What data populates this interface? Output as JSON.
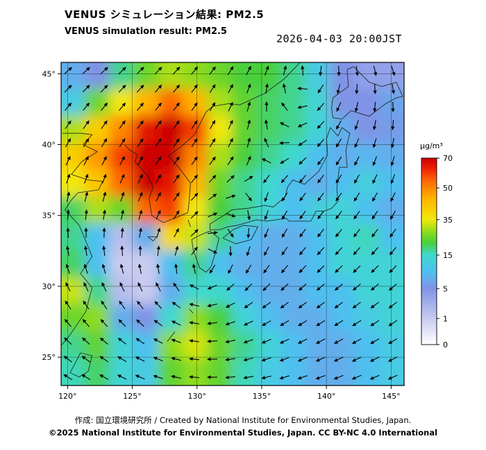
{
  "header": {
    "title_jp": "VENUS シミュレーション結果: PM2.5",
    "title_en": "VENUS simulation result: PM2.5",
    "timestamp": "2026-04-03 20:00JST"
  },
  "footer": {
    "credit": "作成: 国立環境研究所 / Created by National Institute for Environmental Studies, Japan.",
    "copyright": "©2025 National Institute for Environmental Studies, Japan. CC BY-NC 4.0 International"
  },
  "chart_data": {
    "type": "heatmap",
    "title": "VENUS simulation result: PM2.5",
    "variable": "PM2.5 surface concentration with wind vectors",
    "unit": "μg/m³",
    "projection_extent": {
      "lon_min": 119.5,
      "lon_max": 146.0,
      "lat_min": 23.0,
      "lat_max": 45.8
    },
    "lon_ticks": [
      {
        "v": 120,
        "label": "120°"
      },
      {
        "v": 125,
        "label": "125°"
      },
      {
        "v": 130,
        "label": "130°"
      },
      {
        "v": 135,
        "label": "135°"
      },
      {
        "v": 140,
        "label": "140°"
      },
      {
        "v": 145,
        "label": "145°"
      }
    ],
    "lat_ticks": [
      {
        "v": 45,
        "label": "45°"
      },
      {
        "v": 40,
        "label": "40°"
      },
      {
        "v": 35,
        "label": "35°"
      },
      {
        "v": 30,
        "label": "30°"
      },
      {
        "v": 25,
        "label": "25°"
      }
    ],
    "colorbar": {
      "unit_label": "μg/m³",
      "ticks": [
        {
          "v": 70,
          "label": "70"
        },
        {
          "v": 50,
          "label": "50"
        },
        {
          "v": 35,
          "label": "35"
        },
        {
          "v": 15,
          "label": "15"
        },
        {
          "v": 5,
          "label": "5"
        },
        {
          "v": 1,
          "label": "1"
        },
        {
          "v": 0,
          "label": "0"
        }
      ],
      "scale_breaks": [
        [
          0,
          0
        ],
        [
          1,
          0.14
        ],
        [
          5,
          0.3
        ],
        [
          15,
          0.48
        ],
        [
          35,
          0.67
        ],
        [
          50,
          0.84
        ],
        [
          70,
          1.0
        ]
      ],
      "stops": [
        {
          "v": 0,
          "c": "#ffffff"
        },
        {
          "v": 1,
          "c": "#c9cbf0"
        },
        {
          "v": 5,
          "c": "#8093e6"
        },
        {
          "v": 10,
          "c": "#4ec0f0"
        },
        {
          "v": 15,
          "c": "#3fd8cf"
        },
        {
          "v": 22,
          "c": "#49cf3a"
        },
        {
          "v": 28,
          "c": "#8edc1c"
        },
        {
          "v": 35,
          "c": "#f2e80c"
        },
        {
          "v": 45,
          "c": "#ffb400"
        },
        {
          "v": 55,
          "c": "#ff6600"
        },
        {
          "v": 63,
          "c": "#ee2200"
        },
        {
          "v": 70,
          "c": "#cc0000"
        }
      ]
    },
    "grid": {
      "lons": [
        120.4,
        122.3,
        124.2,
        126.1,
        128.0,
        129.9,
        131.8,
        133.7,
        135.6,
        137.5,
        139.4,
        141.3,
        143.2,
        145.1
      ],
      "lats": [
        44.9,
        43.0,
        41.1,
        39.2,
        37.3,
        35.4,
        33.5,
        31.6,
        29.7,
        27.8,
        25.9,
        24.0
      ],
      "values": [
        [
          8,
          5,
          18,
          25,
          30,
          28,
          25,
          22,
          22,
          18,
          12,
          5,
          4,
          4
        ],
        [
          12,
          25,
          35,
          45,
          55,
          45,
          30,
          24,
          20,
          18,
          14,
          5,
          5,
          7
        ],
        [
          30,
          40,
          50,
          65,
          70,
          60,
          35,
          24,
          20,
          18,
          14,
          8,
          5,
          6
        ],
        [
          40,
          48,
          60,
          70,
          70,
          50,
          30,
          22,
          18,
          15,
          10,
          8,
          9,
          8
        ],
        [
          35,
          42,
          55,
          70,
          65,
          45,
          25,
          18,
          15,
          10,
          8,
          10,
          13,
          10
        ],
        [
          20,
          30,
          25,
          55,
          60,
          35,
          22,
          18,
          14,
          10,
          13,
          14,
          10,
          8
        ],
        [
          18,
          10,
          2,
          8,
          38,
          32,
          18,
          10,
          8,
          8,
          10,
          14,
          16,
          10
        ],
        [
          20,
          10,
          1,
          1,
          10,
          18,
          10,
          8,
          8,
          8,
          10,
          14,
          14,
          14
        ],
        [
          32,
          18,
          2,
          1,
          8,
          15,
          15,
          10,
          8,
          8,
          10,
          10,
          14,
          14
        ],
        [
          25,
          28,
          8,
          5,
          15,
          28,
          22,
          14,
          10,
          8,
          8,
          10,
          12,
          14
        ],
        [
          18,
          24,
          14,
          10,
          28,
          33,
          25,
          18,
          14,
          10,
          8,
          8,
          10,
          12
        ],
        [
          16,
          20,
          14,
          12,
          24,
          28,
          24,
          16,
          12,
          10,
          8,
          8,
          10,
          12
        ]
      ]
    },
    "wind": {
      "background": {
        "u_north": 5,
        "u_south": -4
      },
      "vortices": [
        {
          "lon": 130,
          "lat": 30,
          "spin": "cw",
          "strength": 55,
          "core": 15
        },
        {
          "lon": 139,
          "lat": 48,
          "spin": "cw",
          "strength": 90,
          "core": 25
        }
      ]
    },
    "coastlines": [
      [
        [
          119.6,
          40.8
        ],
        [
          121.0,
          40.8
        ],
        [
          121.9,
          40.7
        ],
        [
          121.2,
          40.0
        ],
        [
          122.3,
          39.5
        ],
        [
          121.1,
          38.8
        ],
        [
          120.3,
          37.9
        ],
        [
          121.6,
          37.5
        ],
        [
          122.7,
          37.4
        ],
        [
          122.4,
          36.8
        ],
        [
          120.8,
          36.6
        ],
        [
          120.3,
          36.1
        ],
        [
          119.8,
          35.4
        ],
        [
          120.9,
          34.3
        ],
        [
          121.9,
          32.1
        ],
        [
          121.0,
          30.9
        ],
        [
          121.9,
          29.9
        ],
        [
          121.4,
          28.2
        ],
        [
          119.9,
          26.2
        ],
        [
          118.0,
          24.5
        ],
        [
          117.2,
          23.6
        ]
      ],
      [
        [
          124.4,
          40.0
        ],
        [
          124.8,
          39.6
        ],
        [
          125.4,
          39.3
        ],
        [
          125.2,
          38.8
        ],
        [
          126.2,
          37.8
        ],
        [
          126.6,
          37.0
        ],
        [
          126.3,
          36.2
        ],
        [
          126.5,
          35.0
        ],
        [
          127.4,
          34.5
        ],
        [
          128.5,
          34.9
        ],
        [
          129.3,
          35.2
        ],
        [
          129.4,
          36.1
        ],
        [
          129.5,
          37.3
        ],
        [
          128.4,
          38.6
        ],
        [
          127.8,
          39.2
        ],
        [
          128.7,
          39.8
        ],
        [
          129.8,
          40.7
        ],
        [
          130.7,
          42.3
        ],
        [
          131.2,
          42.7
        ],
        [
          132.5,
          42.9
        ],
        [
          133.3,
          42.8
        ],
        [
          135.2,
          43.6
        ],
        [
          136.7,
          44.6
        ],
        [
          138.4,
          46.2
        ]
      ],
      [
        [
          130.2,
          33.6
        ],
        [
          129.6,
          33.3
        ],
        [
          129.7,
          32.6
        ],
        [
          130.2,
          31.3
        ],
        [
          130.7,
          31.0
        ],
        [
          131.1,
          31.4
        ],
        [
          131.5,
          32.6
        ],
        [
          131.7,
          33.4
        ],
        [
          131.0,
          33.9
        ],
        [
          130.2,
          33.6
        ]
      ],
      [
        [
          132.0,
          33.4
        ],
        [
          133.0,
          33.0
        ],
        [
          134.2,
          33.3
        ],
        [
          134.7,
          34.2
        ],
        [
          133.6,
          34.3
        ],
        [
          132.8,
          34.0
        ],
        [
          132.0,
          33.4
        ]
      ],
      [
        [
          131.0,
          34.0
        ],
        [
          131.8,
          34.0
        ],
        [
          132.4,
          34.2
        ],
        [
          133.1,
          34.3
        ],
        [
          134.6,
          34.7
        ],
        [
          135.4,
          34.6
        ],
        [
          136.9,
          34.8
        ],
        [
          137.1,
          34.6
        ],
        [
          138.8,
          34.6
        ],
        [
          139.2,
          35.3
        ],
        [
          139.8,
          35.3
        ],
        [
          140.4,
          35.5
        ],
        [
          140.9,
          36.0
        ],
        [
          140.8,
          36.9
        ],
        [
          141.0,
          38.4
        ],
        [
          141.6,
          38.4
        ],
        [
          141.5,
          39.6
        ],
        [
          141.8,
          40.8
        ],
        [
          141.2,
          41.2
        ],
        [
          140.9,
          40.6
        ],
        [
          140.3,
          41.2
        ],
        [
          140.0,
          40.4
        ],
        [
          140.1,
          39.3
        ],
        [
          139.4,
          38.1
        ],
        [
          138.3,
          37.2
        ],
        [
          137.4,
          37.5
        ],
        [
          137.0,
          37.0
        ],
        [
          136.8,
          36.3
        ],
        [
          135.9,
          35.6
        ],
        [
          135.2,
          35.7
        ],
        [
          133.9,
          35.5
        ],
        [
          132.7,
          35.4
        ],
        [
          131.9,
          34.9
        ],
        [
          131.0,
          34.4
        ],
        [
          131.0,
          34.0
        ]
      ],
      [
        [
          140.4,
          42.6
        ],
        [
          140.5,
          41.9
        ],
        [
          141.2,
          41.8
        ],
        [
          141.9,
          42.4
        ],
        [
          143.3,
          42.0
        ],
        [
          144.6,
          42.9
        ],
        [
          145.4,
          43.3
        ],
        [
          145.9,
          43.4
        ],
        [
          145.4,
          44.4
        ],
        [
          144.3,
          44.1
        ],
        [
          143.3,
          44.4
        ],
        [
          142.1,
          45.5
        ],
        [
          141.6,
          45.3
        ],
        [
          141.7,
          44.1
        ],
        [
          140.5,
          43.3
        ],
        [
          140.4,
          42.6
        ]
      ],
      [
        [
          121.0,
          25.3
        ],
        [
          121.9,
          25.1
        ],
        [
          121.6,
          24.0
        ],
        [
          120.9,
          23.6
        ],
        [
          120.2,
          23.9
        ],
        [
          121.0,
          25.3
        ]
      ],
      [
        [
          126.2,
          33.5
        ],
        [
          126.9,
          33.5
        ],
        [
          126.6,
          33.2
        ],
        [
          126.2,
          33.5
        ]
      ],
      [
        [
          129.3,
          34.7
        ],
        [
          129.5,
          34.2
        ]
      ],
      [
        [
          127.7,
          26.1
        ],
        [
          128.3,
          26.8
        ]
      ],
      [
        [
          129.4,
          28.4
        ],
        [
          129.7,
          28.1
        ]
      ]
    ]
  }
}
